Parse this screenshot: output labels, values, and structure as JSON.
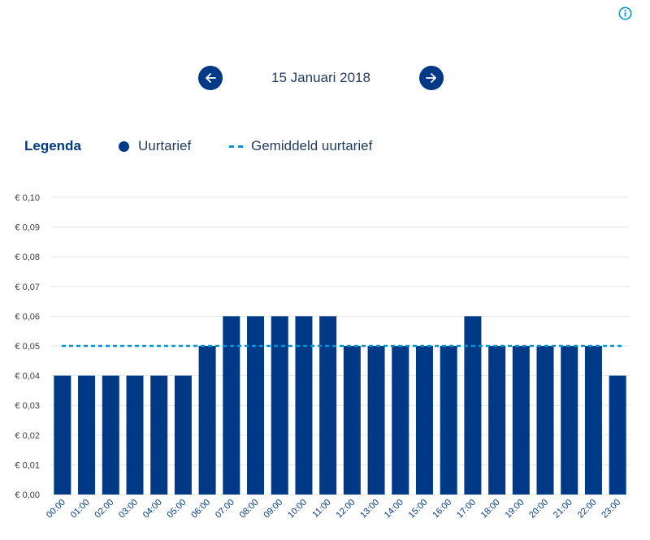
{
  "header": {
    "date": "15 Januari 2018",
    "prev_icon": "arrow-left-icon",
    "next_icon": "arrow-right-icon",
    "info_icon": "info-icon"
  },
  "legend": {
    "title": "Legenda",
    "hourly_label": "Uurtarief",
    "average_label": "Gemiddeld uurtarief"
  },
  "colors": {
    "bar": "#003a86",
    "average_line": "#0095d6",
    "grid": "#e3e3e3"
  },
  "chart_data": {
    "type": "bar",
    "title": "",
    "xlabel": "",
    "ylabel": "",
    "categories": [
      "00:00",
      "01:00",
      "02:00",
      "03:00",
      "04:00",
      "05:00",
      "06:00",
      "07:00",
      "08:00",
      "09:00",
      "10:00",
      "11:00",
      "12:00",
      "13:00",
      "14:00",
      "15:00",
      "16:00",
      "17:00",
      "18:00",
      "19:00",
      "20:00",
      "21:00",
      "22:00",
      "23:00"
    ],
    "series": [
      {
        "name": "Uurtarief",
        "values": [
          0.04,
          0.04,
          0.04,
          0.04,
          0.04,
          0.04,
          0.05,
          0.06,
          0.06,
          0.06,
          0.06,
          0.06,
          0.05,
          0.05,
          0.05,
          0.05,
          0.05,
          0.06,
          0.05,
          0.05,
          0.05,
          0.05,
          0.05,
          0.04
        ]
      }
    ],
    "average": {
      "name": "Gemiddeld uurtarief",
      "value": 0.05
    },
    "ylim": [
      0,
      0.1
    ],
    "yticks": [
      "€ 0,00",
      "€ 0,01",
      "€ 0,02",
      "€ 0,03",
      "€ 0,04",
      "€ 0,05",
      "€ 0,06",
      "€ 0,07",
      "€ 0,08",
      "€ 0,09",
      "€ 0,10"
    ],
    "grid": true,
    "legend_position": "top-left"
  }
}
